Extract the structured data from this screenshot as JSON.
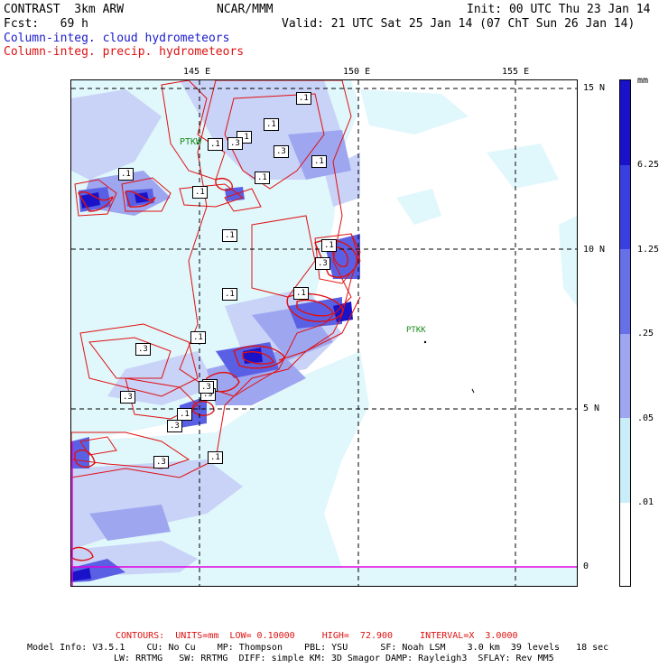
{
  "header": {
    "model": "CONTRAST  3km ARW",
    "center": "NCAR/MMM",
    "init": "Init: 00 UTC Thu 23 Jan 14",
    "fcst": "Fcst:   69 h",
    "valid": "Valid: 21 UTC Sat 25 Jan 14 (07 ChT Sun 26 Jan 14)"
  },
  "fields": {
    "cloud": "Column-integ. cloud hydrometeors",
    "precip": "Column-integ. precip. hydrometeors"
  },
  "map": {
    "lon_labels": [
      "145 E",
      "150 E",
      "155 E"
    ],
    "lat_labels": [
      "15 N",
      "10 N",
      "5 N",
      "0"
    ],
    "stations": [
      "PTKW",
      "PTKK"
    ],
    "contour_labels": [
      ".1",
      ".1",
      ".1",
      ".3",
      ".1",
      ".3",
      ".1",
      ".1",
      ".1",
      ".1",
      ".1",
      ".1",
      ".3",
      ".1",
      ".1",
      ".3",
      ".1",
      ".3",
      ".3",
      ".9",
      ".3",
      ".3",
      ".1",
      ".3",
      ".1"
    ],
    "colors": {
      "lightest": "#e0f7fb",
      "light": "#c9d2f7",
      "medium": "#9ea6f0",
      "dark": "#6870e8",
      "darker": "#3a40e0",
      "darkest": "#1a12c8",
      "contour": "#e01010",
      "equator": "#e000e0"
    }
  },
  "legend": {
    "unit": "mm",
    "labels": [
      "6.25",
      "1.25",
      ".25",
      ".05",
      ".01"
    ]
  },
  "footer": {
    "contours": "CONTOURS:  UNITS=mm  LOW= 0.10000     HIGH=  72.900     INTERVAL=X  3.0000",
    "line1": "Model Info: V3.5.1    CU: No Cu    MP: Thompson    PBL: YSU      SF: Noah LSM    3.0 km  39 levels   18 sec",
    "line2": "LW: RRTMG   SW: RRTMG  DIFF: simple KM: 3D Smagor DAMP: Rayleigh3  SFLAY: Rev MM5"
  }
}
